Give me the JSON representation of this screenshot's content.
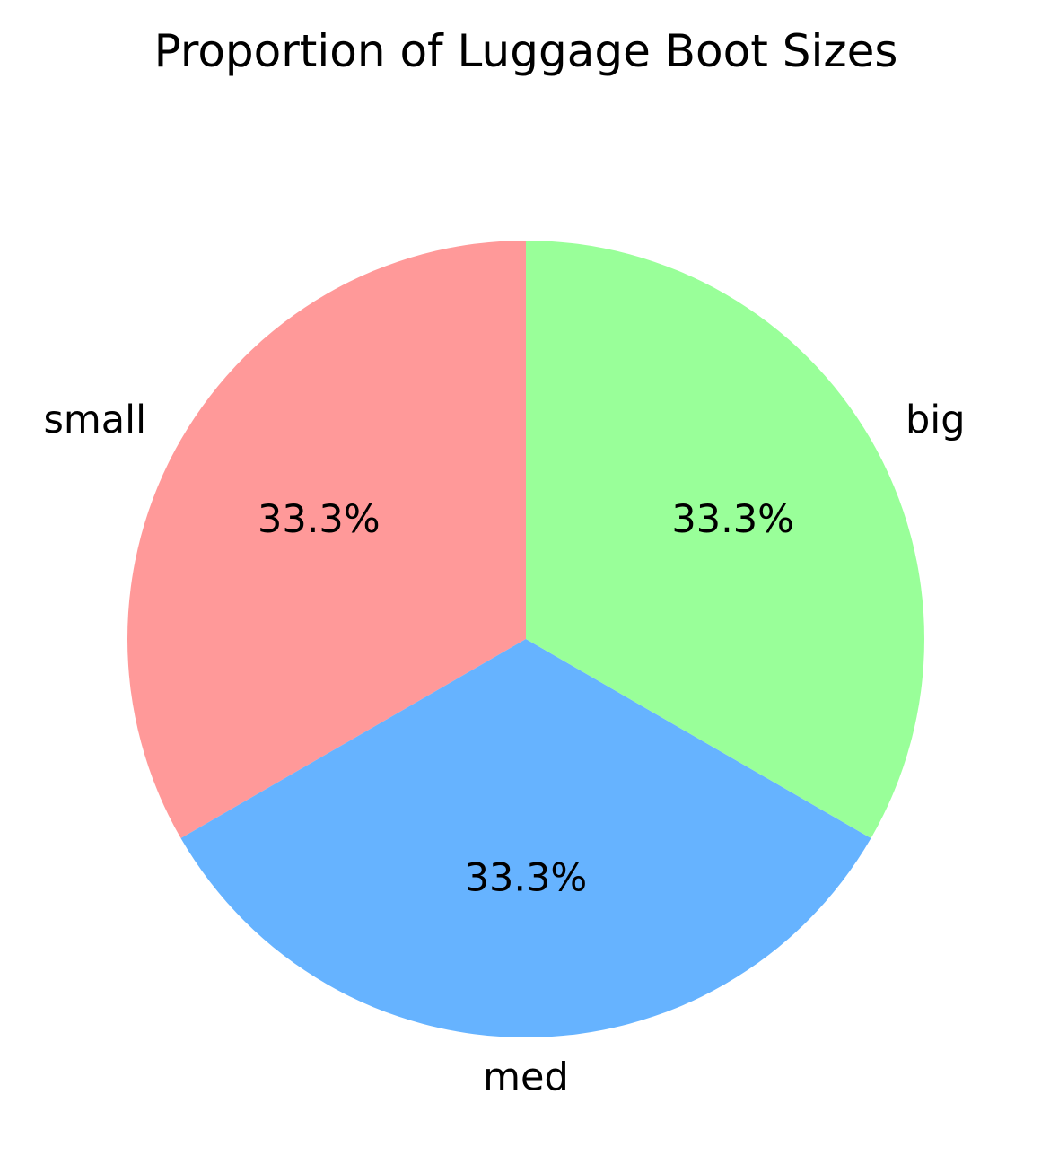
{
  "chart_data": {
    "type": "pie",
    "title": "Proportion of Luggage Boot Sizes",
    "categories": [
      "small",
      "med",
      "big"
    ],
    "values": [
      33.3,
      33.3,
      33.3
    ],
    "percent_labels": [
      "33.3%",
      "33.3%",
      "33.3%"
    ],
    "colors": [
      "#ff9999",
      "#66b3ff",
      "#99ff99"
    ],
    "start_angle_deg": 90,
    "direction": "counterclockwise"
  }
}
